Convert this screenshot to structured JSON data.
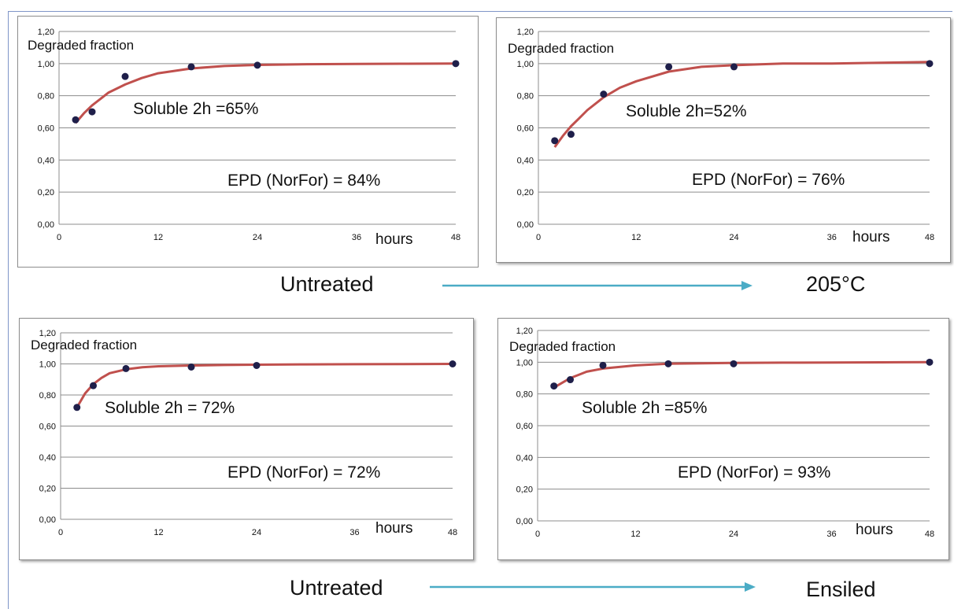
{
  "colors": {
    "curve": "#c0504d",
    "point": "#1f1f4a",
    "grid": "#8c8c8c",
    "arrow": "#4bacc6",
    "text": "#111111"
  },
  "captions": {
    "row1_left": "Untreated",
    "row1_right": "205°C",
    "row2_left": "Untreated",
    "row2_right": "Ensiled"
  },
  "chart_data": [
    {
      "type": "scatter",
      "title": "",
      "ylabel": "Degraded fraction",
      "xlabel": "hours",
      "xlim": [
        0,
        48
      ],
      "ylim": [
        0,
        1.2
      ],
      "x_ticks": [
        "0",
        "12",
        "24",
        "36",
        "48"
      ],
      "y_ticks": [
        "0,00",
        "0,20",
        "0,40",
        "0,60",
        "0,80",
        "1,00",
        "1,20"
      ],
      "grid": true,
      "points": {
        "x": [
          2,
          4,
          8,
          16,
          24,
          48
        ],
        "y": [
          0.65,
          0.7,
          0.92,
          0.98,
          0.99,
          1.0
        ]
      },
      "fit_curve": {
        "x": [
          2,
          3,
          4,
          5,
          6,
          8,
          10,
          12,
          16,
          20,
          24,
          30,
          36,
          42,
          48
        ],
        "y": [
          0.63,
          0.69,
          0.74,
          0.78,
          0.82,
          0.87,
          0.91,
          0.94,
          0.97,
          0.985,
          0.992,
          0.996,
          0.998,
          0.999,
          1.0
        ]
      },
      "annotations": [
        "Soluble 2h =65%",
        "EPD (NorFor) = 84%"
      ]
    },
    {
      "type": "scatter",
      "title": "",
      "ylabel": "Degraded fraction",
      "xlabel": "hours",
      "xlim": [
        0,
        48
      ],
      "ylim": [
        0,
        1.2
      ],
      "x_ticks": [
        "0",
        "12",
        "24",
        "36",
        "48"
      ],
      "y_ticks": [
        "0,00",
        "0,20",
        "0,40",
        "0,60",
        "0,80",
        "1,00",
        "1,20"
      ],
      "grid": true,
      "points": {
        "x": [
          2,
          4,
          8,
          16,
          24,
          48
        ],
        "y": [
          0.52,
          0.56,
          0.81,
          0.98,
          0.98,
          1.0
        ]
      },
      "fit_curve": {
        "x": [
          2,
          3,
          4,
          5,
          6,
          8,
          10,
          12,
          16,
          20,
          24,
          30,
          36,
          42,
          48
        ],
        "y": [
          0.48,
          0.55,
          0.61,
          0.66,
          0.71,
          0.79,
          0.85,
          0.89,
          0.95,
          0.98,
          0.99,
          1.0,
          1.0,
          1.005,
          1.01
        ]
      },
      "annotations": [
        "Soluble 2h=52%",
        "EPD (NorFor) = 76%"
      ]
    },
    {
      "type": "scatter",
      "title": "",
      "ylabel": "Degraded fraction",
      "xlabel": "hours",
      "xlim": [
        0,
        48
      ],
      "ylim": [
        0,
        1.2
      ],
      "x_ticks": [
        "0",
        "12",
        "24",
        "36",
        "48"
      ],
      "y_ticks": [
        "0,00",
        "0,20",
        "0,40",
        "0,60",
        "0,80",
        "1,00",
        "1,20"
      ],
      "grid": true,
      "points": {
        "x": [
          2,
          4,
          8,
          16,
          24,
          48
        ],
        "y": [
          0.72,
          0.86,
          0.97,
          0.98,
          0.99,
          1.0
        ]
      },
      "fit_curve": {
        "x": [
          2,
          3,
          4,
          5,
          6,
          8,
          10,
          12,
          16,
          20,
          24,
          30,
          36,
          42,
          48
        ],
        "y": [
          0.72,
          0.81,
          0.87,
          0.91,
          0.94,
          0.965,
          0.978,
          0.985,
          0.99,
          0.993,
          0.995,
          0.997,
          0.998,
          0.999,
          1.0
        ]
      },
      "annotations": [
        "Soluble 2h = 72%",
        "EPD (NorFor) = 72%"
      ]
    },
    {
      "type": "scatter",
      "title": "",
      "ylabel": "Degraded fraction",
      "xlabel": "hours",
      "xlim": [
        0,
        48
      ],
      "ylim": [
        0,
        1.2
      ],
      "x_ticks": [
        "0",
        "12",
        "24",
        "36",
        "48"
      ],
      "y_ticks": [
        "0,00",
        "0,20",
        "0,40",
        "0,60",
        "0,80",
        "1,00",
        "1,20"
      ],
      "grid": true,
      "points": {
        "x": [
          2,
          4,
          8,
          16,
          24,
          48
        ],
        "y": [
          0.85,
          0.89,
          0.98,
          0.99,
          0.99,
          1.0
        ]
      },
      "fit_curve": {
        "x": [
          2,
          3,
          4,
          5,
          6,
          8,
          10,
          12,
          16,
          20,
          24,
          30,
          36,
          42,
          48
        ],
        "y": [
          0.84,
          0.87,
          0.9,
          0.92,
          0.94,
          0.96,
          0.97,
          0.98,
          0.99,
          0.993,
          0.995,
          0.997,
          0.998,
          0.999,
          1.0
        ]
      },
      "annotations": [
        "Soluble 2h =85%",
        "EPD (NorFor) = 93%"
      ]
    }
  ]
}
